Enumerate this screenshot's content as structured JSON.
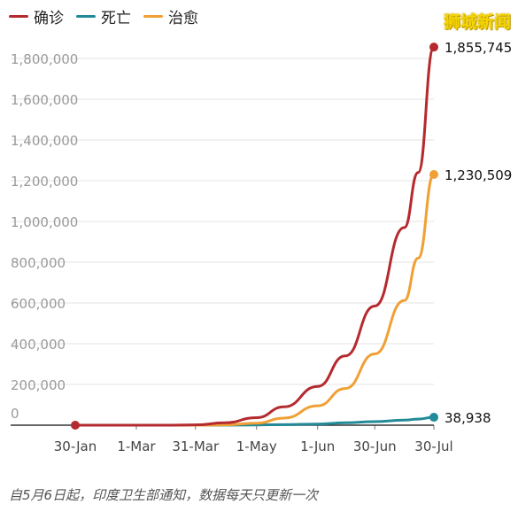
{
  "legend": [
    {
      "label": "确诊",
      "color": "#b52a2e"
    },
    {
      "label": "死亡",
      "color": "#238a97"
    },
    {
      "label": "治愈",
      "color": "#f0a035"
    }
  ],
  "watermark": "狮城新闻",
  "footnote": "自5月6日起，印度卫生部通知，数据每天只更新一次",
  "chart_data": {
    "type": "line",
    "title": "",
    "xlabel": "",
    "ylabel": "",
    "x_ticks": [
      "30-Jan",
      "1-Mar",
      "31-Mar",
      "1-May",
      "1-Jun",
      "30-Jun",
      "30-Jul"
    ],
    "y_ticks": [
      "0",
      "200,000",
      "400,000",
      "600,000",
      "800,000",
      "1,000,000",
      "1,200,000",
      "1,400,000",
      "1,600,000",
      "1,800,000"
    ],
    "ylim": [
      0,
      1900000
    ],
    "grid": "horizontal",
    "legend_position": "top-left",
    "x": [
      "30-Jan",
      "15-Feb",
      "1-Mar",
      "15-Mar",
      "31-Mar",
      "15-Apr",
      "1-May",
      "15-May",
      "1-Jun",
      "15-Jun",
      "30-Jun",
      "15-Jul",
      "22-Jul",
      "30-Jul"
    ],
    "series": [
      {
        "name": "确诊",
        "color": "#b52a2e",
        "values": [
          1,
          3,
          3,
          110,
          1400,
          12000,
          37000,
          90000,
          190000,
          340000,
          585000,
          970000,
          1240000,
          1855745
        ],
        "end_label": "1,855,745"
      },
      {
        "name": "死亡",
        "color": "#238a97",
        "values": [
          0,
          0,
          0,
          2,
          40,
          400,
          1200,
          2800,
          5400,
          11900,
          17400,
          25000,
          30000,
          38938
        ],
        "end_label": "38,938"
      },
      {
        "name": "治愈",
        "color": "#f0a035",
        "values": [
          0,
          0,
          0,
          10,
          120,
          1500,
          10000,
          35000,
          95000,
          180000,
          350000,
          612000,
          820000,
          1230509
        ],
        "end_label": "1,230,509"
      }
    ]
  }
}
